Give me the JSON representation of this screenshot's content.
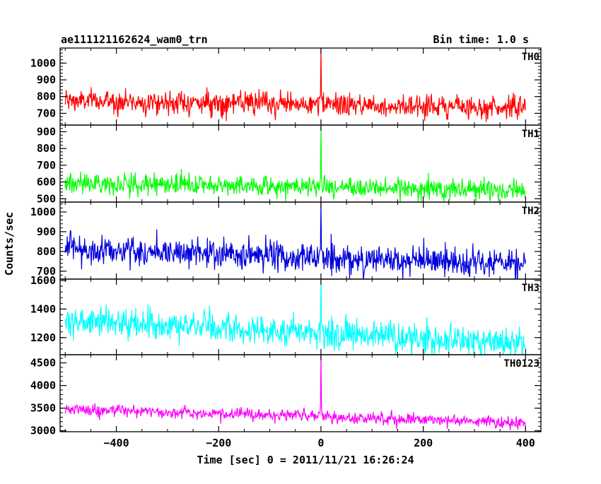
{
  "colors": {
    "axes": "#000000",
    "TH0": "#ff0000",
    "TH1": "#00ff00",
    "TH2": "#0000dd",
    "TH3": "#00ffff",
    "TH0123": "#ff00ff"
  },
  "chart_data": {
    "type": "line",
    "title": "ae111121162624_wam0_trn",
    "subtitle": "Bin time: 1.0 s",
    "xlabel": "Time [sec] 0 = 2011/11/21 16:26:24",
    "ylabel": "Counts/sec",
    "xlim": [
      -510,
      430
    ],
    "xticks": [
      -400,
      -200,
      0,
      200,
      400
    ],
    "xtick_labels": [
      "−400",
      "−200",
      "0",
      "200",
      "400"
    ],
    "x_range": [
      -500,
      400
    ],
    "bin_time": 1.0,
    "grid": false,
    "legend": "panel labels top-right",
    "panels": [
      {
        "name": "TH0",
        "color": "#ff0000",
        "ylim": [
          630,
          1090
        ],
        "yticks": [
          700,
          800,
          900,
          1000
        ],
        "ytick_labels": [
          "700",
          "800",
          "900",
          "1000"
        ],
        "baseline_start": 775,
        "baseline_end": 735,
        "noise": 34,
        "spike": {
          "x": 0,
          "peak": 1090,
          "low": 760
        }
      },
      {
        "name": "TH1",
        "color": "#00ff00",
        "ylim": [
          480,
          940
        ],
        "yticks": [
          500,
          600,
          700,
          800,
          900
        ],
        "ytick_labels": [
          "500",
          "600",
          "700",
          "800",
          "900"
        ],
        "baseline_start": 595,
        "baseline_end": 550,
        "noise": 30,
        "spike": {
          "x": 0,
          "peak": 940,
          "low": 570
        }
      },
      {
        "name": "TH2",
        "color": "#0000dd",
        "ylim": [
          660,
          1050
        ],
        "yticks": [
          700,
          800,
          900,
          1000
        ],
        "ytick_labels": [
          "700",
          "800",
          "900",
          "1000"
        ],
        "baseline_start": 815,
        "baseline_end": 730,
        "noise": 38,
        "spike": {
          "x": 0,
          "peak": 1050,
          "low": 770
        }
      },
      {
        "name": "TH3",
        "color": "#00ffff",
        "ylim": [
          1080,
          1610
        ],
        "yticks": [
          1200,
          1400,
          1600
        ],
        "ytick_labels": [
          "1200",
          "1400",
          "1600"
        ],
        "baseline_start": 1320,
        "baseline_end": 1160,
        "noise": 52,
        "spike": {
          "x": 0,
          "peak": 1610,
          "low": 1250
        }
      },
      {
        "name": "TH0123",
        "color": "#ff00ff",
        "ylim": [
          2980,
          4680
        ],
        "yticks": [
          3000,
          3500,
          4000,
          4500
        ],
        "ytick_labels": [
          "3000",
          "3500",
          "4000",
          "4500"
        ],
        "baseline_start": 3480,
        "baseline_end": 3180,
        "noise": 65,
        "spike": {
          "x": 0,
          "peak": 4680,
          "low": 3330
        }
      }
    ]
  }
}
